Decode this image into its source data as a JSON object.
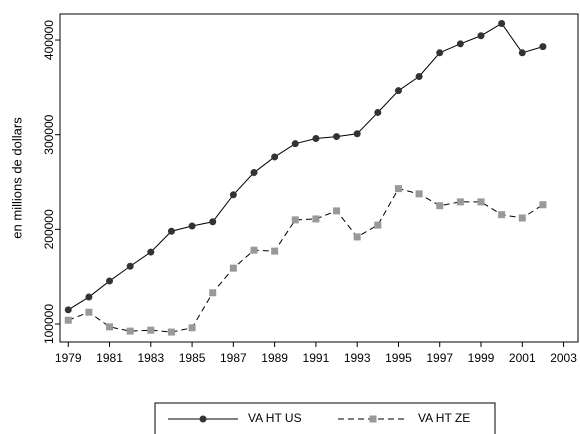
{
  "chart_data": {
    "type": "line",
    "ylabel": "en millions de dollars",
    "x": [
      1979,
      1980,
      1981,
      1982,
      1983,
      1984,
      1985,
      1986,
      1987,
      1988,
      1989,
      1990,
      1991,
      1992,
      1993,
      1994,
      1995,
      1996,
      1997,
      1998,
      1999,
      2000,
      2001,
      2002
    ],
    "series": [
      {
        "name": "VA HT US",
        "color": "#333333",
        "line_style": "solid",
        "marker": "circle",
        "values": [
          115000,
          128500,
          145500,
          161000,
          176000,
          198000,
          203500,
          208000,
          236500,
          260000,
          276500,
          290500,
          296000,
          298000,
          301000,
          323500,
          346500,
          361500,
          386500,
          396000,
          404500,
          417500,
          386500,
          393000
        ]
      },
      {
        "name": "VA HT ZE",
        "color": "#999999",
        "line_style": "dashed",
        "marker": "square",
        "values": [
          104000,
          112500,
          97000,
          92500,
          93500,
          91500,
          96000,
          133000,
          159000,
          178000,
          177000,
          210000,
          211000,
          219500,
          192000,
          204500,
          243000,
          237500,
          225000,
          229000,
          229000,
          215500,
          212000,
          226000
        ]
      }
    ],
    "xlim": [
      1978.6,
      2003.7
    ],
    "xticks": [
      1979,
      1981,
      1983,
      1985,
      1987,
      1989,
      1991,
      1993,
      1995,
      1997,
      1999,
      2001,
      2003
    ],
    "ylim": [
      81000,
      427500
    ],
    "yticks": [
      100000,
      200000,
      300000,
      400000
    ],
    "grid": false,
    "legend": "bottom"
  }
}
